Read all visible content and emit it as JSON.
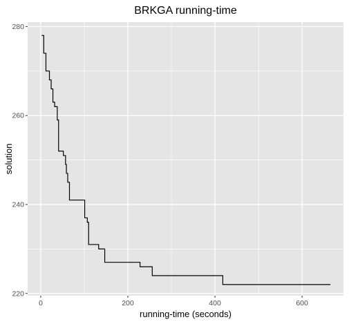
{
  "chart_data": {
    "type": "line",
    "title": "BRKGA running-time",
    "xlabel": "running-time (seconds)",
    "ylabel": "solution",
    "xlim": [
      -30,
      695
    ],
    "ylim": [
      219.5,
      281
    ],
    "x_ticks": [
      0,
      200,
      400,
      600
    ],
    "y_ticks": [
      220,
      240,
      260,
      280
    ],
    "grid": true,
    "panel_color": "#e5e5e5",
    "grid_color": "#ffffff",
    "line_color": "#000000",
    "series": [
      {
        "step": "hv",
        "x": [
          2,
          7,
          12,
          20,
          24,
          28,
          32,
          38,
          41,
          52,
          57,
          59,
          62,
          66,
          71,
          101,
          104,
          107,
          110,
          114,
          133,
          147,
          166,
          228,
          256,
          418,
          665
        ],
        "y": [
          278,
          274,
          270,
          268,
          266,
          263,
          262,
          259,
          252,
          251,
          249,
          247,
          245,
          241,
          241,
          237,
          237,
          236,
          231,
          231,
          230,
          227,
          227,
          226,
          224,
          222,
          222
        ]
      }
    ]
  }
}
